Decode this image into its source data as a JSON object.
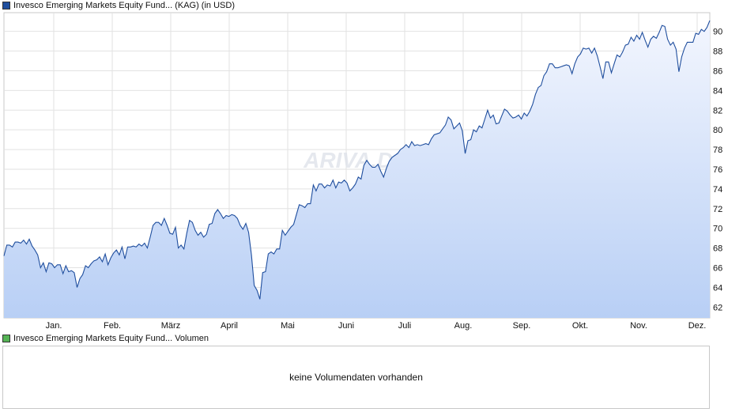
{
  "legend_price": {
    "label": "Invesco Emerging Markets Equity Fund... (KAG)  (in USD)",
    "color": "#1f4e9e"
  },
  "legend_volume": {
    "label": "Invesco Emerging Markets Equity Fund... Volumen",
    "color": "#55b355"
  },
  "volume_panel": {
    "message": "keine Volumendaten vorhanden"
  },
  "watermark": "ARIVA.DE",
  "chart_data": {
    "type": "area",
    "currency": "USD",
    "x_ticks": [
      "Jan.",
      "Feb.",
      "März",
      "April",
      "Mai",
      "Juni",
      "Juli",
      "Aug.",
      "Sep.",
      "Okt.",
      "Nov.",
      "Dez."
    ],
    "y_ticks": [
      62,
      64,
      66,
      68,
      70,
      72,
      74,
      76,
      78,
      80,
      82,
      84,
      86,
      88,
      90
    ],
    "ylim": [
      60.9,
      91.9
    ],
    "grid": true,
    "line_color": "#1f4e9e",
    "fill_top_color": "#f3f6fe",
    "fill_bottom_color": "#b8cff5",
    "series": [
      {
        "values": [
          67.2,
          68.3,
          68.3,
          68.1,
          68.6,
          68.6,
          68.5,
          68.8,
          68.4,
          68.9,
          68.2,
          67.8,
          67.3,
          66.0,
          66.5,
          65.6,
          66.5,
          66.4,
          66.0,
          66.3,
          66.3,
          65.4,
          66.2,
          65.6,
          65.7,
          65.5,
          64.0,
          64.9,
          65.3,
          66.2,
          66.0,
          66.4,
          66.7,
          66.8,
          67.1,
          66.6,
          67.4,
          66.3,
          67.0,
          67.5,
          67.8,
          67.3,
          68.1,
          66.9,
          68.1,
          68.1,
          68.2,
          68.1,
          68.4,
          68.2,
          68.5,
          68.0,
          69.1,
          70.3,
          70.6,
          70.6,
          70.3,
          71.0,
          70.3,
          69.5,
          69.4,
          70.1,
          68.0,
          68.3,
          67.9,
          69.5,
          70.8,
          70.6,
          69.8,
          69.3,
          69.6,
          69.1,
          69.4,
          70.4,
          70.5,
          71.5,
          71.9,
          71.5,
          71.0,
          71.3,
          71.2,
          71.4,
          71.3,
          71.0,
          70.3,
          69.9,
          70.5,
          69.6,
          67.3,
          64.2,
          63.7,
          62.8,
          65.5,
          65.6,
          67.4,
          67.6,
          67.4,
          67.9,
          67.9,
          69.8,
          69.3,
          69.7,
          70.1,
          70.4,
          71.4,
          72.4,
          72.3,
          72.1,
          72.5,
          72.5,
          74.4,
          73.8,
          74.5,
          74.5,
          74.1,
          74.4,
          74.3,
          74.9,
          74.1,
          74.7,
          74.6,
          74.9,
          74.6,
          73.8,
          74.1,
          74.5,
          75.2,
          75.0,
          76.4,
          76.9,
          76.5,
          76.2,
          76.2,
          76.5,
          75.8,
          75.2,
          76.1,
          76.8,
          77.2,
          77.4,
          77.6,
          78.0,
          78.2,
          78.5,
          78.2,
          78.8,
          78.4,
          78.5,
          78.4,
          78.5,
          78.6,
          78.5,
          79.1,
          79.5,
          79.6,
          79.7,
          80.1,
          80.5,
          81.3,
          81.0,
          80.1,
          80.4,
          80.7,
          79.9,
          77.6,
          78.9,
          79.0,
          80.0,
          79.8,
          80.4,
          80.2,
          81.1,
          82.0,
          81.2,
          81.5,
          80.6,
          80.7,
          81.4,
          82.1,
          81.9,
          81.5,
          81.2,
          81.3,
          81.5,
          81.1,
          81.7,
          81.4,
          81.9,
          82.6,
          83.6,
          84.3,
          84.5,
          85.5,
          85.9,
          86.7,
          86.7,
          86.3,
          86.3,
          86.4,
          86.5,
          86.6,
          86.5,
          85.7,
          86.7,
          87.4,
          87.7,
          88.3,
          88.2,
          88.3,
          87.8,
          88.3,
          87.5,
          86.4,
          85.2,
          86.9,
          86.9,
          85.8,
          86.7,
          87.6,
          87.4,
          87.9,
          88.6,
          88.7,
          89.4,
          89.0,
          89.6,
          89.2,
          89.9,
          89.1,
          88.4,
          89.2,
          89.5,
          89.3,
          89.9,
          90.6,
          90.5,
          89.2,
          88.6,
          88.9,
          88.2,
          85.9,
          87.4,
          88.3,
          88.9,
          88.9,
          88.9,
          89.8,
          89.7,
          90.2,
          90.0,
          90.4,
          91.1
        ]
      }
    ]
  }
}
